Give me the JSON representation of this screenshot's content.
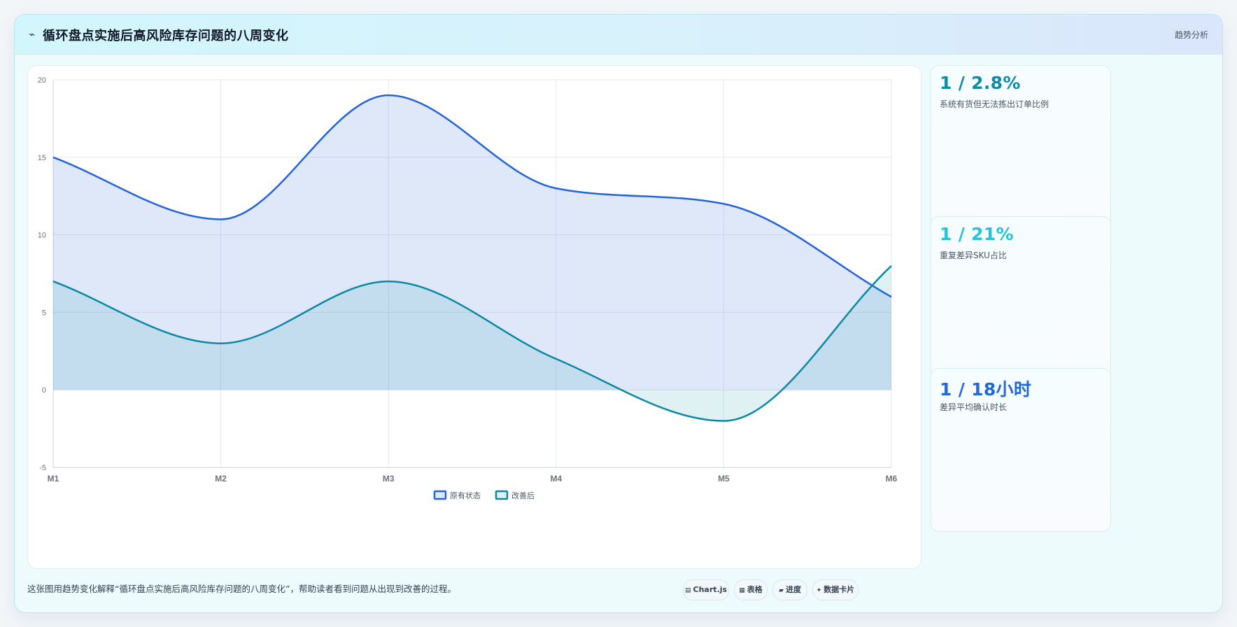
{
  "header": {
    "icon": "trend-line-icon",
    "title": "循环盘点实施后高风险库存问题的八周变化",
    "tag": "趋势分析"
  },
  "chart_data": {
    "type": "line",
    "categories": [
      "M1",
      "M2",
      "M3",
      "M4",
      "M5",
      "M6"
    ],
    "series": [
      {
        "name": "原有状态",
        "values": [
          15,
          11,
          19,
          13,
          12,
          6
        ],
        "color": "#2563d9",
        "fill": "rgba(37, 99, 217, 0.15)"
      },
      {
        "name": "改善后",
        "values": [
          7,
          3,
          7,
          2,
          -2,
          8
        ],
        "color": "#0b89a3",
        "fill": "rgba(14, 150, 170, 0.13)"
      }
    ],
    "ylim": [
      -5,
      20
    ],
    "yticks": [
      -5,
      0,
      5,
      10,
      15,
      20
    ],
    "grid": true,
    "smooth": true,
    "legend": "bottom"
  },
  "stats": [
    {
      "value": "1 / 2.8%",
      "label": "系统有货但无法拣出订单比例",
      "color": "#0e8ba6"
    },
    {
      "value": "1 / 21%",
      "label": "重复差异SKU占比",
      "color": "#24c3d8"
    },
    {
      "value": "1 / 18小时",
      "label": "差异平均确认时长",
      "color": "#2368d6"
    }
  ],
  "footer": {
    "text": "这张图用趋势变化解释“循环盘点实施后高风险库存问题的八周变化”，帮助读者看到问题从出现到改善的过程。",
    "chips": [
      {
        "icon": "chart-icon",
        "glyph": "▤",
        "label": "Chart.js"
      },
      {
        "icon": "table-icon",
        "glyph": "▦",
        "label": "表格"
      },
      {
        "icon": "progress-icon",
        "glyph": "▰",
        "label": "进度"
      },
      {
        "icon": "sparkle-icon",
        "glyph": "✦",
        "label": "数据卡片"
      }
    ]
  }
}
